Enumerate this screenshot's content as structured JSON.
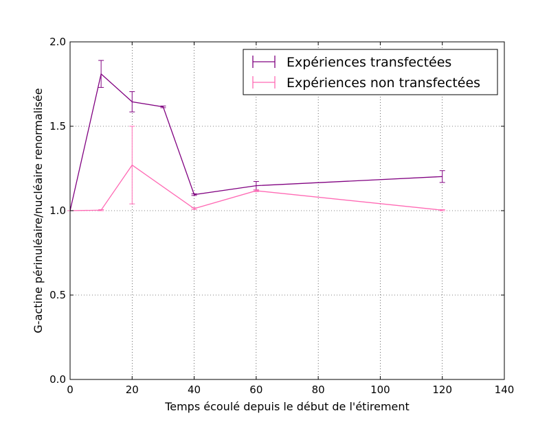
{
  "chart_data": {
    "type": "line",
    "title": "",
    "xlabel": "Temps écoulé depuis le début de l'étirement",
    "ylabel": "G-actine périnuléaire/nucléaire renormalisée",
    "xlim": [
      0,
      140
    ],
    "ylim": [
      0,
      2
    ],
    "xticks": [
      0,
      20,
      40,
      60,
      80,
      100,
      120,
      140
    ],
    "yticks": [
      0.0,
      0.5,
      1.0,
      1.5,
      2.0
    ],
    "xtick_labels": [
      "0",
      "20",
      "40",
      "60",
      "80",
      "100",
      "120",
      "140"
    ],
    "ytick_labels": [
      "0.0",
      "0.5",
      "1.0",
      "1.5",
      "2.0"
    ],
    "grid": true,
    "legend_position": "top-right",
    "series": [
      {
        "name": "Expériences transfectées",
        "color": "#800080",
        "x": [
          0,
          10,
          20,
          30,
          40,
          60,
          120
        ],
        "y": [
          1.0,
          1.81,
          1.645,
          1.615,
          1.095,
          1.148,
          1.202
        ],
        "yerr": [
          0.0,
          0.08,
          0.06,
          0.005,
          0.005,
          0.025,
          0.035
        ]
      },
      {
        "name": "Expériences non transfectées",
        "color": "#ff69b4",
        "x": [
          0,
          10,
          20,
          40,
          60,
          120
        ],
        "y": [
          1.0,
          1.003,
          1.27,
          1.012,
          1.118,
          1.003
        ],
        "yerr": [
          0.0,
          0.003,
          0.23,
          0.005,
          0.005,
          0.003
        ]
      }
    ]
  }
}
